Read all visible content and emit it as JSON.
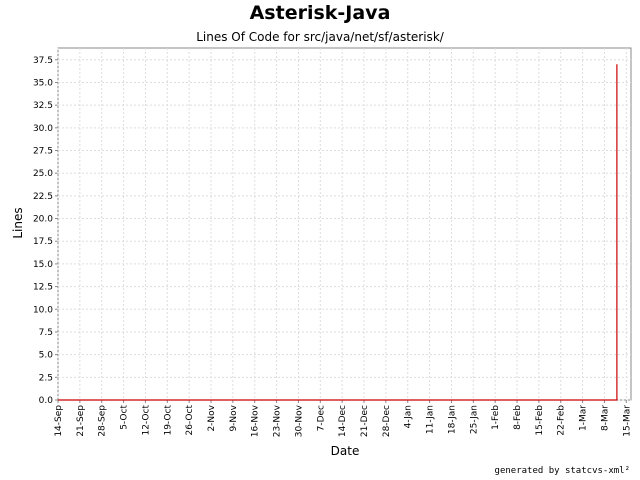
{
  "chart_data": {
    "type": "line",
    "title": "Asterisk-Java",
    "subtitle": "Lines Of Code for src/java/net/sf/asterisk/",
    "xlabel": "Date",
    "ylabel": "Lines",
    "credit": "generated by statcvs-xml²",
    "ylim": [
      0,
      38.8
    ],
    "yticks": [
      "0.0",
      "2.5",
      "5.0",
      "7.5",
      "10.0",
      "12.5",
      "15.0",
      "17.5",
      "20.0",
      "22.5",
      "25.0",
      "27.5",
      "30.0",
      "32.5",
      "35.0",
      "37.5"
    ],
    "xticks": [
      "14-Sep",
      "21-Sep",
      "28-Sep",
      "5-Oct",
      "12-Oct",
      "19-Oct",
      "26-Oct",
      "2-Nov",
      "9-Nov",
      "16-Nov",
      "23-Nov",
      "30-Nov",
      "7-Dec",
      "14-Dec",
      "21-Dec",
      "28-Dec",
      "4-Jan",
      "11-Jan",
      "18-Jan",
      "25-Jan",
      "1-Feb",
      "8-Feb",
      "15-Feb",
      "22-Feb",
      "1-Mar",
      "8-Mar",
      "15-Mar"
    ],
    "xrange_days": [
      0,
      183.5
    ],
    "grid": true,
    "line_color": "#cc0000",
    "series": [
      {
        "points": [
          {
            "x": "14-Sep",
            "y": 0
          },
          {
            "x": "11-Mar",
            "y": 0
          },
          {
            "x": "11-Mar",
            "y": 37
          }
        ]
      }
    ]
  }
}
